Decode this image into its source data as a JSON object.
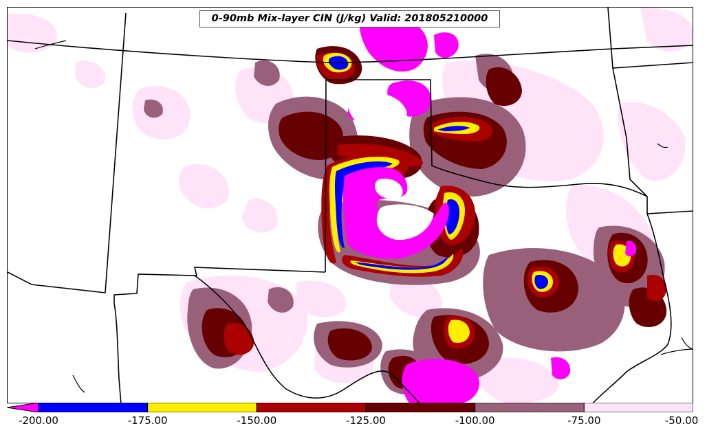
{
  "title": "0-90mb Mix-layer CIN (J/kg) Valid: 201805210000",
  "colorbar": {
    "bins": [
      {
        "from": -200,
        "to": -175,
        "color": "#0000ff"
      },
      {
        "from": -175,
        "to": -150,
        "color": "#ffee00"
      },
      {
        "from": -150,
        "to": -125,
        "color": "#aa0000"
      },
      {
        "from": -125,
        "to": -100,
        "color": "#660000"
      },
      {
        "from": -100,
        "to": -75,
        "color": "#99607a"
      },
      {
        "from": -75,
        "to": -50,
        "color": "#ffe3f8"
      }
    ],
    "under_color": "#ff00ff",
    "tick_labels": [
      "-200.00",
      "-175.00",
      "-150.00",
      "-125.00",
      "-100.00",
      "-75.00",
      "-50.00"
    ]
  },
  "colors": {
    "background": "#ffffff",
    "boundary": "#000000",
    "extreme_cin": "#ff00ff",
    "blue": "#0000ff",
    "yellow": "#ffee00",
    "red": "#aa0000",
    "dark_red": "#660000",
    "mauve": "#99607a",
    "pale_pink": "#ffe3f8"
  }
}
